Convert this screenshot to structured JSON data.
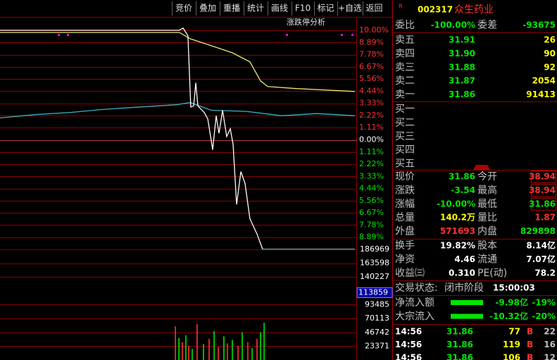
{
  "toolbar": {
    "buttons": [
      "竞价",
      "叠加",
      "重播",
      "统计",
      "画线",
      "F10",
      "标记",
      "+自选",
      "返回"
    ]
  },
  "chart_data": [
    {
      "type": "line",
      "annotation": "涨跌停分析",
      "xlim": [
        0,
        240
      ],
      "ylim": [
        -10,
        10
      ],
      "yticks": [
        {
          "value": 10,
          "label": "10.00%"
        },
        {
          "value": 8.89,
          "label": "8.89%"
        },
        {
          "value": 7.78,
          "label": "7.78%"
        },
        {
          "value": 6.67,
          "label": "6.67%"
        },
        {
          "value": 5.56,
          "label": "5.56%"
        },
        {
          "value": 4.44,
          "label": "4.44%"
        },
        {
          "value": 3.33,
          "label": "3.33%"
        },
        {
          "value": 2.22,
          "label": "2.22%"
        },
        {
          "value": 1.11,
          "label": "1.11%"
        },
        {
          "value": 0,
          "label": "0.00%"
        },
        {
          "value": -1.11,
          "label": "1.11%"
        },
        {
          "value": -2.22,
          "label": "2.22%"
        },
        {
          "value": -3.33,
          "label": "3.33%"
        },
        {
          "value": -4.44,
          "label": "4.44%"
        },
        {
          "value": -5.56,
          "label": "5.56%"
        },
        {
          "value": -6.67,
          "label": "6.67%"
        },
        {
          "value": -7.78,
          "label": "7.78%"
        },
        {
          "value": -8.89,
          "label": "8.89%"
        }
      ],
      "series": [
        {
          "color": "#e8e870",
          "x": [
            0,
            121.4,
            128.6,
            142.9,
            157.1,
            169,
            176.2,
            181,
            200,
            240
          ],
          "values": [
            9.8,
            9.8,
            9.23,
            8.59,
            7.95,
            7.12,
            5.38,
            4.87,
            4.68,
            4.42
          ]
        },
        {
          "color": "#40b0c0",
          "x": [
            0,
            23.8,
            47.6,
            71.4,
            95.2,
            119,
            128.6,
            142.9,
            166.7,
            190.5,
            214.3,
            240
          ],
          "values": [
            2.0,
            2.3,
            2.5,
            2.8,
            3.0,
            3.2,
            3.4,
            2.7,
            2.6,
            2.2,
            2.4,
            2.2
          ]
        },
        {
          "color": "#ffffff",
          "x": [
            0,
            121,
            123.8,
            127.1,
            129,
            131,
            132.4,
            133.8,
            138.1,
            140.5,
            143.8,
            146.2,
            148.1,
            150.5,
            153.3,
            155.7,
            157.6,
            160,
            162.9,
            165.7,
            169,
            173.8,
            177.6,
            240
          ],
          "values": [
            10,
            10,
            10.2,
            9.5,
            3.0,
            3.1,
            5.2,
            3.1,
            2.5,
            1.9,
            -0.9,
            2.2,
            0.6,
            2.7,
            0.3,
            1.0,
            -0.4,
            -5.9,
            -2.9,
            -4.0,
            -7.2,
            -8.6,
            -10,
            -10
          ]
        }
      ]
    },
    {
      "type": "bar",
      "xlim": [
        0,
        240
      ],
      "ylim": [
        0,
        186969
      ],
      "yticks": [
        186969,
        163598,
        140227,
        93485,
        70113,
        46742,
        23371
      ],
      "cursor_value": 113859,
      "x": [
        118.6,
        121,
        123.3,
        125.7,
        127.6,
        130,
        133.3,
        137.6,
        141.4,
        144.8,
        147.6,
        151.4,
        153.8,
        157.1,
        161,
        163.8,
        167.6,
        170.5,
        173.8,
        176.2,
        178.6
      ],
      "values": [
        57000,
        37000,
        30000,
        42000,
        24000,
        19000,
        61000,
        27000,
        36000,
        49000,
        22000,
        40000,
        28000,
        34000,
        24000,
        47000,
        30000,
        20000,
        36000,
        47000,
        63000
      ],
      "colors": [
        "#ff3232",
        "#00e600",
        "#ff3232",
        "#00e600",
        "#ff3232",
        "#00e600",
        "#ff3232",
        "#00e600",
        "#ff3232",
        "#00e600",
        "#ff3232",
        "#00e600",
        "#ff3232",
        "#00e600",
        "#ff3232",
        "#00e600",
        "#ff3232",
        "#00e600",
        "#ff3232",
        "#00e600",
        "#00e600"
      ]
    }
  ],
  "panel": {
    "header": {
      "prefix": "R",
      "code": "002317",
      "name": "众生药业"
    },
    "weibi": [
      "委比",
      "-100.00%",
      "委差",
      "-93675"
    ],
    "sell": [
      [
        "卖五",
        "31.91",
        "26"
      ],
      [
        "卖四",
        "31.90",
        "90"
      ],
      [
        "卖三",
        "31.88",
        "92"
      ],
      [
        "卖二",
        "31.87",
        "2054"
      ],
      [
        "卖一",
        "31.86",
        "91413"
      ]
    ],
    "buy": [
      "买一",
      "买二",
      "买三",
      "买四",
      "买五"
    ],
    "stats": [
      [
        "现价",
        "31.86",
        "今开",
        "38.94"
      ],
      [
        "涨跌",
        "-3.54",
        "最高",
        "38.94"
      ],
      [
        "涨幅",
        "-10.00%",
        "最低",
        "31.86"
      ],
      [
        "总量",
        "140.2万",
        "量比",
        "1.87"
      ],
      [
        "外盘",
        "571693",
        "内盘",
        "829898"
      ],
      [
        "换手",
        "19.82%",
        "股本",
        "8.14亿"
      ],
      [
        "净资",
        "4.46",
        "流通",
        "7.07亿"
      ],
      [
        "收益㈢",
        "0.310",
        "PE(动)",
        "78.2"
      ]
    ],
    "status": {
      "label": "交易状态:",
      "phase": "闭市阶段",
      "time": "15:00:03"
    },
    "flows": [
      [
        "净流入额",
        "-9.98亿",
        "-19%"
      ],
      [
        "大宗流入",
        "-10.32亿",
        "-20%"
      ]
    ],
    "trades": [
      [
        "14:56",
        "31.86",
        "77",
        "B",
        "22"
      ],
      [
        "14:56",
        "31.86",
        "119",
        "B",
        "16"
      ],
      [
        "14:56",
        "31.86",
        "106",
        "B",
        "12"
      ]
    ]
  }
}
